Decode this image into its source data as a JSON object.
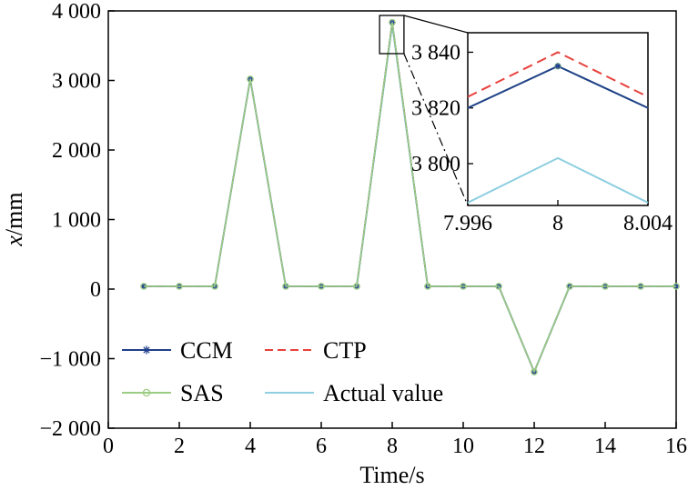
{
  "chart_data": {
    "type": "line",
    "title": "",
    "xlabel": "Time/s",
    "ylabel_var": "x",
    "ylabel_unit": "/mm",
    "xlim": [
      0,
      16
    ],
    "ylim": [
      -2000,
      4000
    ],
    "xticks": [
      0,
      2,
      4,
      6,
      8,
      10,
      12,
      14,
      16
    ],
    "xtick_labels": [
      "0",
      "2",
      "4",
      "6",
      "8",
      "10",
      "12",
      "14",
      "16"
    ],
    "yticks": [
      -2000,
      -1000,
      0,
      1000,
      2000,
      3000,
      4000
    ],
    "ytick_labels": [
      "−2 000",
      "−1 000",
      "0",
      "1 000",
      "2 000",
      "3 000",
      "4 000"
    ],
    "grid": false,
    "legend_position": "lower-left",
    "x": [
      1,
      2,
      3,
      4,
      5,
      6,
      7,
      8,
      9,
      10,
      11,
      12,
      13,
      14,
      15,
      16
    ],
    "series": [
      {
        "name": "CCM",
        "color": "#1f3f8c",
        "marker": "asterisk",
        "values": [
          40,
          40,
          40,
          3020,
          40,
          40,
          40,
          3835,
          40,
          40,
          40,
          -1190,
          40,
          40,
          40,
          40
        ]
      },
      {
        "name": "CTP",
        "color": "#e8413c",
        "dash": true,
        "values": [
          40,
          40,
          40,
          3020,
          40,
          40,
          40,
          3840,
          40,
          40,
          40,
          -1190,
          40,
          40,
          40,
          40
        ]
      },
      {
        "name": "SAS",
        "color": "#9ccc83",
        "marker": "circle",
        "values": [
          40,
          40,
          40,
          3020,
          40,
          40,
          40,
          3835,
          40,
          40,
          40,
          -1190,
          40,
          40,
          40,
          40
        ]
      },
      {
        "name": "Actual value",
        "color": "#8ecfe0",
        "values": [
          40,
          40,
          40,
          3020,
          40,
          40,
          40,
          3802,
          40,
          40,
          40,
          -1190,
          40,
          40,
          40,
          40
        ]
      }
    ],
    "inset": {
      "xlim": [
        7.996,
        8.004
      ],
      "ylim": [
        3785,
        3847
      ],
      "xticks": [
        7.996,
        8,
        8.004
      ],
      "xtick_labels": [
        "7.996",
        "8",
        "8.004"
      ],
      "yticks": [
        3800,
        3820,
        3840
      ],
      "ytick_labels": [
        "3 800",
        "3 820",
        "3 840"
      ],
      "zoom_x": [
        7.9,
        8.1
      ],
      "zoom_y": [
        3780,
        3900
      ],
      "series": [
        {
          "name": "CCM",
          "points": [
            [
              7.996,
              3820
            ],
            [
              8,
              3835
            ],
            [
              8.004,
              3820
            ]
          ]
        },
        {
          "name": "CTP",
          "points": [
            [
              7.996,
              3824
            ],
            [
              8,
              3840
            ],
            [
              8.004,
              3824
            ]
          ]
        },
        {
          "name": "SAS",
          "points": [
            [
              7.996,
              3820
            ],
            [
              8,
              3835
            ],
            [
              8.004,
              3820
            ]
          ]
        },
        {
          "name": "Actual value",
          "points": [
            [
              7.996,
              3786
            ],
            [
              8,
              3802
            ],
            [
              8.004,
              3786
            ]
          ]
        }
      ]
    }
  }
}
